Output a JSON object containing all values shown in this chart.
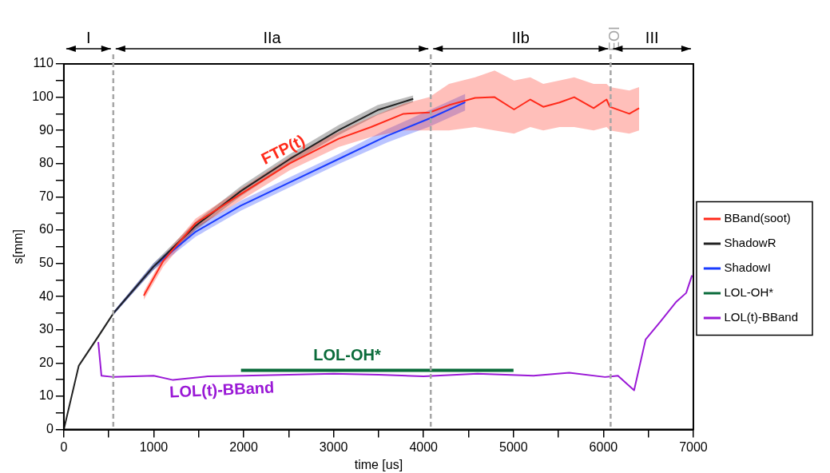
{
  "chart_data": {
    "type": "line",
    "xlabel": "time [us]",
    "ylabel": "s[mm]",
    "xlim": [
      0,
      7000
    ],
    "ylim": [
      0,
      110
    ],
    "xticks": [
      0,
      {
        "value": 500,
        "label": null
      },
      1000,
      {
        "value": 1500,
        "label": null
      },
      2000,
      {
        "value": 2500,
        "label": null
      },
      3000,
      {
        "value": 3500,
        "label": null
      },
      4000,
      {
        "value": 4500,
        "label": null
      },
      5000,
      {
        "value": 5500,
        "label": null
      },
      6000,
      {
        "value": 6500,
        "label": null
      },
      7000
    ],
    "yticks": [
      0,
      {
        "value": 5,
        "label": null
      },
      10,
      {
        "value": 15,
        "label": null
      },
      20,
      {
        "value": 25,
        "label": null
      },
      30,
      {
        "value": 35,
        "label": null
      },
      40,
      {
        "value": 45,
        "label": null
      },
      50,
      {
        "value": 55,
        "label": null
      },
      60,
      {
        "value": 65,
        "label": null
      },
      70,
      {
        "value": 75,
        "label": null
      },
      80,
      {
        "value": 85,
        "label": null
      },
      90,
      {
        "value": 95,
        "label": null
      },
      100,
      {
        "value": 105,
        "label": null
      },
      110
    ],
    "grid": false,
    "legend": "right",
    "marker": "none",
    "line_style": "solid",
    "series": [
      {
        "name": "BBand(soot)",
        "color": "#ff2a1a",
        "x": [
          889,
          1105,
          1466,
          1972,
          2514,
          3056,
          3416,
          3777,
          4066,
          4283,
          4573,
          4790,
          5006,
          5187,
          5331,
          5512,
          5675,
          5891,
          6035,
          6071,
          6288,
          6397
        ],
        "values": [
          40.3,
          50.7,
          62.1,
          70.9,
          80.1,
          87.5,
          91,
          95,
          95.4,
          97.6,
          99.8,
          100,
          96.3,
          99.3,
          97.1,
          98.4,
          100,
          96.7,
          99.3,
          97.1,
          95,
          96.7
        ],
        "lower": [
          39,
          49,
          60.5,
          69,
          78,
          85,
          88,
          90,
          90,
          90,
          91,
          90,
          89,
          91,
          90,
          91,
          91,
          90,
          91,
          90,
          89,
          90
        ],
        "upper": [
          41.5,
          52,
          63.5,
          72.5,
          82,
          89.5,
          94,
          98,
          100,
          104,
          106,
          108,
          105,
          106,
          104,
          105,
          106,
          104,
          104,
          103,
          102,
          103
        ]
      },
      {
        "name": "ShadowR",
        "color": "#222222",
        "x": [
          0,
          166,
          383,
          552,
          997,
          1466,
          1972,
          2514,
          3056,
          3489,
          3885
        ],
        "values": [
          0,
          19.2,
          28,
          35,
          49,
          61.3,
          71.8,
          81.4,
          90.1,
          96.1,
          99.5
        ],
        "lower": [
          0,
          18.7,
          27.5,
          34.5,
          48,
          60,
          70.3,
          79.9,
          88.6,
          94.6,
          98.5
        ],
        "upper": [
          0,
          19.7,
          28.5,
          35.5,
          50,
          62.6,
          73.3,
          82.9,
          91.6,
          97.6,
          100.5
        ]
      },
      {
        "name": "ShadowI",
        "color": "#1a3cff",
        "x": [
          552,
          997,
          1466,
          1972,
          2514,
          3056,
          3597,
          4066,
          4464
        ],
        "values": [
          35,
          49,
          59.5,
          67.4,
          74.4,
          81.4,
          88.4,
          93.6,
          98.5
        ],
        "lower": [
          34.5,
          48,
          58,
          65.9,
          72.9,
          79.9,
          86.4,
          91.1,
          96
        ],
        "upper": [
          35.5,
          50,
          61,
          68.9,
          75.9,
          82.9,
          90.4,
          96.1,
          101
        ]
      },
      {
        "name": "LOL-OH*",
        "color": "#0a6b3a",
        "x": [
          1970,
          5000
        ],
        "values": [
          17.8,
          17.8
        ]
      },
      {
        "name": "LOL(t)-BBand",
        "color": "#9a19d6",
        "x": [
          383,
          418,
          552,
          1000,
          1214,
          1600,
          2000,
          2500,
          3000,
          3500,
          4000,
          4600,
          5223,
          5620,
          6017,
          6161,
          6341,
          6469,
          6631,
          6812,
          6920,
          6985
        ],
        "values": [
          26.3,
          16.2,
          15.8,
          16.2,
          14.9,
          16,
          16.2,
          16.5,
          16.8,
          16.5,
          16,
          16.8,
          16.2,
          17.1,
          15.8,
          16.2,
          11.8,
          27.1,
          32.4,
          38.5,
          41.1,
          46.4
        ]
      }
    ],
    "ref_lines": [
      {
        "axis": "x",
        "value": 550,
        "color": "#a6a6a6",
        "line_style": "dashed"
      },
      {
        "axis": "x",
        "value": 4080,
        "color": "#a6a6a6",
        "line_style": "dashed"
      },
      {
        "axis": "x",
        "value": 6080,
        "label": "EOI",
        "color": "#a6a6a6",
        "line_style": "dashed"
      }
    ],
    "annotations": [
      "I",
      "IIa",
      "IIb",
      "III",
      {
        "text": "FTP(t)",
        "x": 2514,
        "y": 80.1
      },
      {
        "text": "LOL-OH*",
        "x": 3150,
        "y": 17.8
      },
      {
        "text": "LOL(t)-BBand",
        "x": 1750,
        "y": 16
      }
    ]
  }
}
